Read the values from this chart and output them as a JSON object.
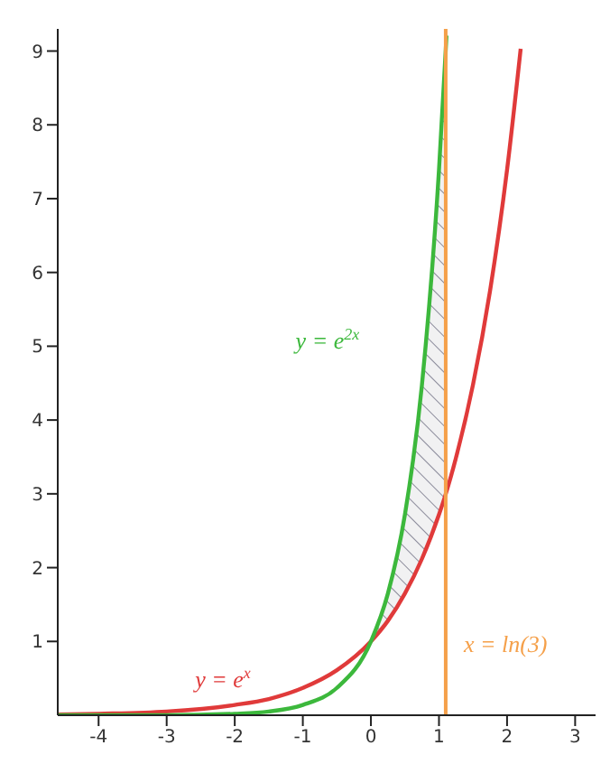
{
  "chart_data": {
    "type": "line",
    "xlim": [
      -4.6,
      3.3
    ],
    "ylim": [
      0,
      9.3
    ],
    "xticks": [
      -4,
      -3,
      -2,
      -1,
      0,
      1,
      2,
      3
    ],
    "yticks": [
      1,
      2,
      3,
      4,
      5,
      6,
      7,
      8,
      9
    ],
    "legend": false,
    "marker": "none",
    "line_style": "solid",
    "series": [
      {
        "name": "y = e$^{x}$",
        "color": "#e03a3a",
        "x": [
          -4.6,
          -4,
          -3,
          -2,
          -1.5,
          -1,
          -0.5,
          0,
          0.25,
          0.5,
          0.75,
          1,
          1.1,
          1.25,
          1.5,
          1.75,
          2,
          2.2
        ],
        "values": [
          0.01,
          0.02,
          0.05,
          0.14,
          0.22,
          0.37,
          0.61,
          1,
          1.28,
          1.65,
          2.12,
          2.72,
          3.0,
          3.49,
          4.48,
          5.75,
          7.39,
          9.03
        ]
      },
      {
        "name": "y = e$^{2x}$",
        "color": "#3cb83c",
        "x": [
          -4.6,
          -4,
          -3,
          -2,
          -1.5,
          -1,
          -0.5,
          0,
          0.25,
          0.5,
          0.75,
          1,
          1.1,
          1.11
        ],
        "values": [
          0,
          0,
          0,
          0.02,
          0.05,
          0.14,
          0.37,
          1,
          1.65,
          2.72,
          4.48,
          7.39,
          9.03,
          9.21
        ],
        "lower": [
          null,
          null,
          null,
          null,
          null,
          null,
          null,
          1,
          1.28,
          1.65,
          2.12,
          2.72,
          3.0,
          null
        ],
        "upper": [
          null,
          null,
          null,
          null,
          null,
          null,
          null,
          1,
          1.65,
          2.72,
          4.48,
          7.39,
          9.03,
          null
        ]
      }
    ],
    "ref_lines": [
      {
        "axis": "x",
        "value": 1.0986,
        "label": "x = ln(3)",
        "color": "#f5a04a"
      }
    ]
  }
}
